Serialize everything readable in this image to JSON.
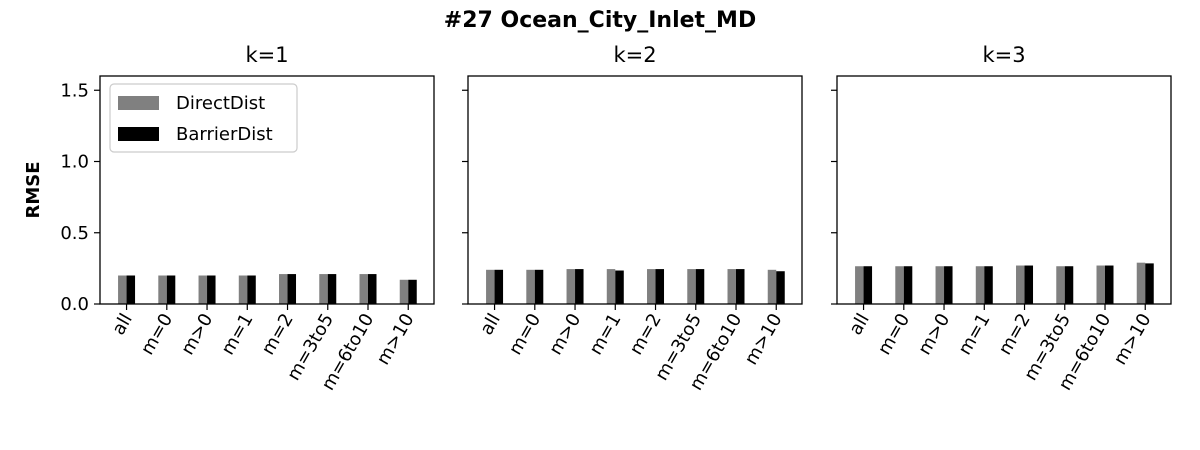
{
  "figure": {
    "title": "#27 Ocean_City_Inlet_MD",
    "ylabel": "RMSE"
  },
  "chart_data": [
    {
      "type": "bar",
      "title": "k=1",
      "categories": [
        "all",
        "m=0",
        "m>0",
        "m=1",
        "m=2",
        "m=3to5",
        "m=6to10",
        "m>10"
      ],
      "ylim": [
        0,
        1.6
      ],
      "yticks": [
        "0.0",
        "0.5",
        "1.0",
        "1.5"
      ],
      "legend": "top-left",
      "series": [
        {
          "name": "DirectDist",
          "color": "#808080",
          "values": [
            0.2,
            0.2,
            0.2,
            0.2,
            0.21,
            0.21,
            0.21,
            0.17
          ]
        },
        {
          "name": "BarrierDist",
          "color": "#000000",
          "values": [
            0.2,
            0.2,
            0.2,
            0.2,
            0.21,
            0.21,
            0.21,
            0.17
          ]
        }
      ]
    },
    {
      "type": "bar",
      "title": "k=2",
      "categories": [
        "all",
        "m=0",
        "m>0",
        "m=1",
        "m=2",
        "m=3to5",
        "m=6to10",
        "m>10"
      ],
      "ylim": [
        0,
        1.6
      ],
      "series": [
        {
          "name": "DirectDist",
          "color": "#808080",
          "values": [
            0.24,
            0.24,
            0.245,
            0.245,
            0.245,
            0.245,
            0.245,
            0.24
          ]
        },
        {
          "name": "BarrierDist",
          "color": "#000000",
          "values": [
            0.24,
            0.24,
            0.245,
            0.235,
            0.245,
            0.245,
            0.245,
            0.23
          ]
        }
      ]
    },
    {
      "type": "bar",
      "title": "k=3",
      "categories": [
        "all",
        "m=0",
        "m>0",
        "m=1",
        "m=2",
        "m=3to5",
        "m=6to10",
        "m>10"
      ],
      "ylim": [
        0,
        1.6
      ],
      "series": [
        {
          "name": "DirectDist",
          "color": "#808080",
          "values": [
            0.265,
            0.265,
            0.265,
            0.265,
            0.27,
            0.265,
            0.27,
            0.29
          ]
        },
        {
          "name": "BarrierDist",
          "color": "#000000",
          "values": [
            0.265,
            0.265,
            0.265,
            0.265,
            0.27,
            0.265,
            0.27,
            0.285
          ]
        }
      ]
    }
  ]
}
